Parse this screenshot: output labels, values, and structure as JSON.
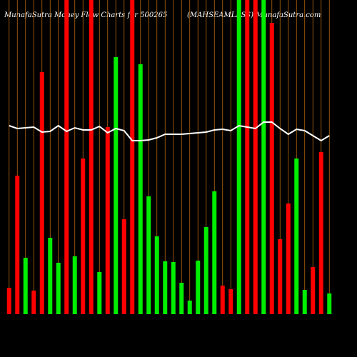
{
  "chart_data": {
    "type": "bar",
    "title": "MunafaSutra  Money  Flow  Charts for 500265",
    "subtitle": "(MAHSEAMLESS) MunafaSutra.com",
    "categories": [
      null,
      null,
      null,
      null,
      null,
      null,
      null,
      null,
      null,
      null,
      null,
      null,
      null,
      null,
      null,
      null,
      null,
      null,
      null,
      null,
      null,
      null,
      null,
      null,
      null,
      null,
      null,
      null,
      null,
      null,
      null,
      null,
      null,
      null,
      null,
      null,
      null,
      null,
      null,
      null
    ],
    "values": [
      37,
      194,
      79,
      33,
      339,
      107,
      72,
      440,
      81,
      218,
      440,
      59,
      262,
      360,
      133,
      440,
      350,
      165,
      109,
      74,
      73,
      44,
      19,
      75,
      122,
      172,
      40,
      35,
      440,
      440,
      440,
      440,
      408,
      105,
      155,
      218,
      34,
      66,
      227,
      29
    ],
    "colors": [
      "#ff0000",
      "#ff0000",
      "#00ee00",
      "#ff0000",
      "#ff0000",
      "#00ee00",
      "#00ee00",
      "#ff0000",
      "#00ee00",
      "#ff0000",
      "#ff0000",
      "#00ee00",
      "#ff0000",
      "#00ee00",
      "#ff0000",
      "#ff0000",
      "#00ee00",
      "#00ee00",
      "#00ee00",
      "#00ee00",
      "#00ee00",
      "#00ee00",
      "#00ee00",
      "#00ee00",
      "#00ee00",
      "#00ee00",
      "#ff0000",
      "#ff0000",
      "#00ee00",
      "#ff0000",
      "#ff0000",
      "#00ee00",
      "#ff0000",
      "#ff0000",
      "#ff0000",
      "#00ee00",
      "#00ee00",
      "#ff0000",
      "#ff0000",
      "#00ee00"
    ],
    "line": {
      "color": "#ffffff",
      "values": [
        264,
        260,
        261,
        262,
        255,
        256,
        264,
        256,
        261,
        258,
        258,
        263,
        254,
        260,
        257,
        243,
        243,
        244,
        247,
        252,
        252,
        252,
        253,
        254,
        255,
        258,
        259,
        257,
        264,
        262,
        260,
        269,
        269,
        260,
        252,
        259,
        257,
        250,
        243,
        250
      ]
    },
    "ylim": [
      0,
      440
    ],
    "divider_color": "#b8690e"
  }
}
